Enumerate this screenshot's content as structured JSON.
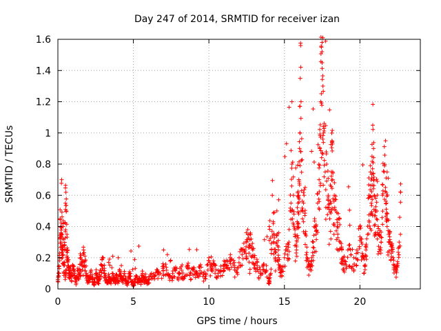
{
  "chart_data": {
    "type": "scatter",
    "title": "Day 247 of 2014, SRMTID for receiver izan",
    "xlabel": "GPS time / hours",
    "ylabel": "SRMTID / TECUs",
    "xlim": [
      0,
      24
    ],
    "ylim": [
      0,
      1.6
    ],
    "xticks": [
      0,
      5,
      10,
      15,
      20
    ],
    "xtick_labels": [
      "0",
      "5",
      "10",
      "15",
      "20"
    ],
    "yticks": [
      0,
      0.2,
      0.4,
      0.6,
      0.8,
      1.0,
      1.2,
      1.4,
      1.6
    ],
    "ytick_labels": [
      "0",
      "0.2",
      "0.4",
      "0.6",
      "0.8",
      "1",
      "1.2",
      "1.4",
      "1.6"
    ],
    "grid": true,
    "marker": "+",
    "color": "#ff0000",
    "series": [
      {
        "name": "SRMTID",
        "x": [
          0.0,
          0.05,
          0.1,
          0.15,
          0.2,
          0.25,
          0.3,
          0.35,
          0.4,
          0.45,
          0.5,
          0.55,
          0.6,
          0.65,
          0.7,
          0.75,
          0.8,
          0.9,
          1.0,
          1.1,
          1.2,
          1.3,
          1.4,
          1.5,
          1.6,
          1.7,
          1.8,
          1.9,
          2.0,
          2.1,
          2.2,
          2.3,
          2.4,
          2.5,
          2.6,
          2.7,
          2.8,
          2.9,
          3.0,
          3.1,
          3.2,
          3.3,
          3.4,
          3.5,
          3.6,
          3.7,
          3.8,
          3.9,
          4.0,
          4.1,
          4.2,
          4.3,
          4.4,
          4.5,
          4.6,
          4.7,
          4.8,
          4.9,
          5.0,
          5.1,
          5.2,
          5.3,
          5.4,
          5.5,
          5.6,
          5.7,
          5.8,
          5.9,
          6.0,
          6.2,
          6.4,
          6.6,
          6.8,
          7.0,
          7.2,
          7.4,
          7.6,
          7.8,
          8.0,
          8.2,
          8.4,
          8.6,
          8.8,
          9.0,
          9.2,
          9.4,
          9.6,
          9.8,
          10.0,
          10.2,
          10.4,
          10.6,
          10.8,
          11.0,
          11.2,
          11.4,
          11.6,
          11.8,
          12.0,
          12.2,
          12.4,
          12.5,
          12.6,
          12.7,
          12.8,
          12.9,
          13.0,
          13.2,
          13.4,
          13.6,
          13.8,
          14.0,
          14.1,
          14.2,
          14.3,
          14.4,
          14.5,
          14.6,
          14.7,
          14.8,
          15.0,
          15.2,
          15.3,
          15.4,
          15.5,
          15.6,
          15.7,
          15.8,
          15.85,
          15.9,
          15.95,
          16.0,
          16.05,
          16.1,
          16.2,
          16.3,
          16.4,
          16.5,
          16.6,
          16.7,
          16.8,
          16.9,
          17.0,
          17.1,
          17.2,
          17.3,
          17.35,
          17.4,
          17.45,
          17.5,
          17.55,
          17.6,
          17.7,
          17.8,
          17.9,
          18.0,
          18.1,
          18.15,
          18.2,
          18.3,
          18.4,
          18.5,
          18.6,
          18.7,
          18.8,
          18.9,
          19.0,
          19.2,
          19.4,
          19.6,
          19.8,
          20.0,
          20.1,
          20.2,
          20.3,
          20.4,
          20.5,
          20.6,
          20.7,
          20.75,
          20.8,
          20.85,
          20.9,
          20.95,
          21.0,
          21.1,
          21.2,
          21.3,
          21.4,
          21.5,
          21.6,
          21.7,
          21.75,
          21.8,
          21.9,
          22.0,
          22.1,
          22.2,
          22.3,
          22.4,
          22.5,
          22.6,
          22.7,
          0.2,
          0.25,
          0.5,
          0.6,
          1.0,
          2.0,
          3.0,
          4.0,
          7.0,
          10.0,
          12.7,
          14.0,
          14.5,
          15.5,
          16.1,
          17.5,
          18.2,
          20.9,
          21.8,
          22.0
        ],
        "y": [
          0.05,
          0.1,
          0.2,
          0.45,
          0.3,
          0.7,
          0.2,
          0.4,
          0.15,
          0.25,
          0.55,
          0.5,
          0.35,
          0.2,
          0.15,
          0.1,
          0.12,
          0.08,
          0.15,
          0.1,
          0.05,
          0.12,
          0.08,
          0.2,
          0.15,
          0.25,
          0.18,
          0.1,
          0.05,
          0.08,
          0.12,
          0.06,
          0.04,
          0.1,
          0.07,
          0.05,
          0.12,
          0.15,
          0.2,
          0.1,
          0.06,
          0.04,
          0.08,
          0.05,
          0.1,
          0.07,
          0.06,
          0.09,
          0.05,
          0.12,
          0.08,
          0.05,
          0.1,
          0.06,
          0.04,
          0.08,
          0.1,
          0.05,
          0.03,
          0.06,
          0.08,
          0.04,
          0.07,
          0.05,
          0.1,
          0.06,
          0.08,
          0.05,
          0.06,
          0.1,
          0.08,
          0.12,
          0.1,
          0.15,
          0.12,
          0.08,
          0.1,
          0.14,
          0.1,
          0.12,
          0.08,
          0.15,
          0.1,
          0.12,
          0.1,
          0.14,
          0.08,
          0.1,
          0.18,
          0.12,
          0.15,
          0.1,
          0.12,
          0.18,
          0.15,
          0.2,
          0.16,
          0.12,
          0.2,
          0.22,
          0.25,
          0.3,
          0.35,
          0.28,
          0.32,
          0.25,
          0.2,
          0.15,
          0.1,
          0.15,
          0.12,
          0.05,
          0.1,
          0.6,
          0.35,
          0.2,
          0.3,
          0.25,
          0.15,
          0.12,
          0.2,
          0.25,
          0.3,
          0.5,
          0.8,
          0.6,
          0.35,
          0.25,
          0.4,
          0.55,
          0.6,
          0.9,
          1.35,
          1.2,
          0.45,
          0.6,
          0.35,
          0.2,
          0.15,
          0.12,
          0.2,
          0.3,
          0.45,
          0.35,
          0.55,
          0.7,
          0.9,
          1.2,
          1.55,
          1.45,
          1.3,
          1.0,
          0.75,
          0.8,
          0.6,
          0.45,
          0.55,
          0.95,
          0.7,
          0.6,
          0.5,
          0.4,
          0.45,
          0.3,
          0.25,
          0.2,
          0.18,
          0.25,
          0.22,
          0.2,
          0.25,
          0.4,
          0.3,
          0.2,
          0.15,
          0.25,
          0.35,
          0.6,
          0.75,
          0.55,
          0.85,
          1.05,
          0.9,
          0.6,
          0.5,
          0.45,
          0.4,
          0.35,
          0.3,
          0.6,
          0.75,
          0.95,
          0.55,
          0.4,
          0.35,
          0.3,
          0.25,
          0.2,
          0.15,
          0.12,
          0.15,
          0.3,
          0.62,
          0.4,
          0.25,
          0.1,
          0.2,
          0.12,
          0.08,
          0.12,
          0.2,
          0.25,
          0.2,
          0.1,
          0.4,
          0.5,
          1.2,
          0.5,
          1.58,
          0.75,
          0.7,
          0.75,
          0.3
        ],
        "y_jitter_note": "dense cloud of points"
      }
    ]
  }
}
